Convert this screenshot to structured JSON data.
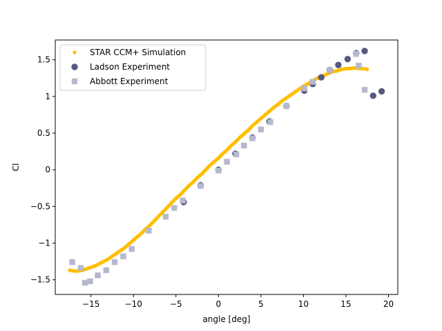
{
  "chart_data": {
    "type": "scatter",
    "xlabel": "angle [deg]",
    "ylabel": "Cl",
    "xlim": [
      -19.2,
      21.1
    ],
    "ylim": [
      -1.7,
      1.77
    ],
    "xticks": [
      -15,
      -10,
      -5,
      0,
      5,
      10,
      15,
      20
    ],
    "yticks": [
      -1.5,
      -1.0,
      -0.5,
      0.0,
      0.5,
      1.0,
      1.5
    ],
    "grid": false,
    "legend_position": "top-left",
    "series": [
      {
        "name": "STAR CCM+ Simulation",
        "marker": "dot",
        "color": "#ffbf00",
        "x": [
          -17.5,
          -17.0,
          -16.5,
          -16.0,
          -15.5,
          -15.0,
          -14.5,
          -14.0,
          -13.5,
          -13.0,
          -12.5,
          -12.0,
          -11.5,
          -11.0,
          -10.5,
          -10.0,
          -9.5,
          -9.0,
          -8.5,
          -8.0,
          -7.5,
          -7.0,
          -6.5,
          -6.0,
          -5.5,
          -5.0,
          -4.5,
          -4.0,
          -3.5,
          -3.0,
          -2.5,
          -2.0,
          -1.5,
          -1.0,
          -0.5,
          0.0,
          0.5,
          1.0,
          1.5,
          2.0,
          2.5,
          3.0,
          3.5,
          4.0,
          4.5,
          5.0,
          5.5,
          6.0,
          6.5,
          7.0,
          7.5,
          8.0,
          8.5,
          9.0,
          9.5,
          10.0,
          10.5,
          11.0,
          11.5,
          12.0,
          12.5,
          13.0,
          13.5,
          14.0,
          14.5,
          15.0,
          15.5,
          16.0,
          16.5,
          17.0,
          17.5
        ],
        "y": [
          -1.37,
          -1.38,
          -1.38,
          -1.37,
          -1.35,
          -1.33,
          -1.31,
          -1.28,
          -1.25,
          -1.22,
          -1.18,
          -1.14,
          -1.1,
          -1.06,
          -1.01,
          -0.96,
          -0.91,
          -0.86,
          -0.8,
          -0.75,
          -0.69,
          -0.63,
          -0.57,
          -0.51,
          -0.45,
          -0.39,
          -0.34,
          -0.28,
          -0.22,
          -0.17,
          -0.11,
          -0.06,
          0.0,
          0.06,
          0.11,
          0.16,
          0.22,
          0.27,
          0.33,
          0.38,
          0.44,
          0.49,
          0.54,
          0.6,
          0.65,
          0.7,
          0.75,
          0.8,
          0.85,
          0.89,
          0.94,
          0.98,
          1.02,
          1.06,
          1.1,
          1.14,
          1.17,
          1.21,
          1.24,
          1.27,
          1.29,
          1.32,
          1.34,
          1.35,
          1.37,
          1.38,
          1.38,
          1.39,
          1.38,
          1.38,
          1.37
        ]
      },
      {
        "name": "Ladson Experiment",
        "marker": "circle",
        "color": "#555a80",
        "x": [
          -4.1,
          -2.1,
          0.0,
          2.0,
          4.0,
          6.0,
          8.0,
          10.1,
          11.1,
          12.1,
          13.1,
          14.1,
          15.2,
          16.2,
          17.2,
          18.2,
          19.2
        ],
        "y": [
          -0.44,
          -0.21,
          0.0,
          0.22,
          0.44,
          0.66,
          0.87,
          1.08,
          1.17,
          1.26,
          1.36,
          1.43,
          1.51,
          1.59,
          1.62,
          1.01,
          1.07
        ]
      },
      {
        "name": "Abbott Experiment",
        "marker": "square",
        "color": "#b6b8d0",
        "x": [
          -17.2,
          -16.2,
          -15.7,
          -15.1,
          -14.2,
          -13.2,
          -12.2,
          -11.2,
          -10.2,
          -8.2,
          -6.2,
          -5.2,
          -4.2,
          -2.1,
          0.0,
          1.0,
          2.1,
          3.0,
          4.0,
          5.0,
          6.1,
          8.0,
          10.1,
          11.1,
          13.1,
          16.2,
          16.5,
          17.2
        ],
        "y": [
          -1.26,
          -1.34,
          -1.54,
          -1.52,
          -1.44,
          -1.37,
          -1.26,
          -1.18,
          -1.08,
          -0.83,
          -0.64,
          -0.52,
          -0.42,
          -0.22,
          -0.01,
          0.11,
          0.21,
          0.33,
          0.43,
          0.55,
          0.65,
          0.87,
          1.11,
          1.2,
          1.36,
          1.58,
          1.42,
          1.09
        ]
      }
    ]
  }
}
